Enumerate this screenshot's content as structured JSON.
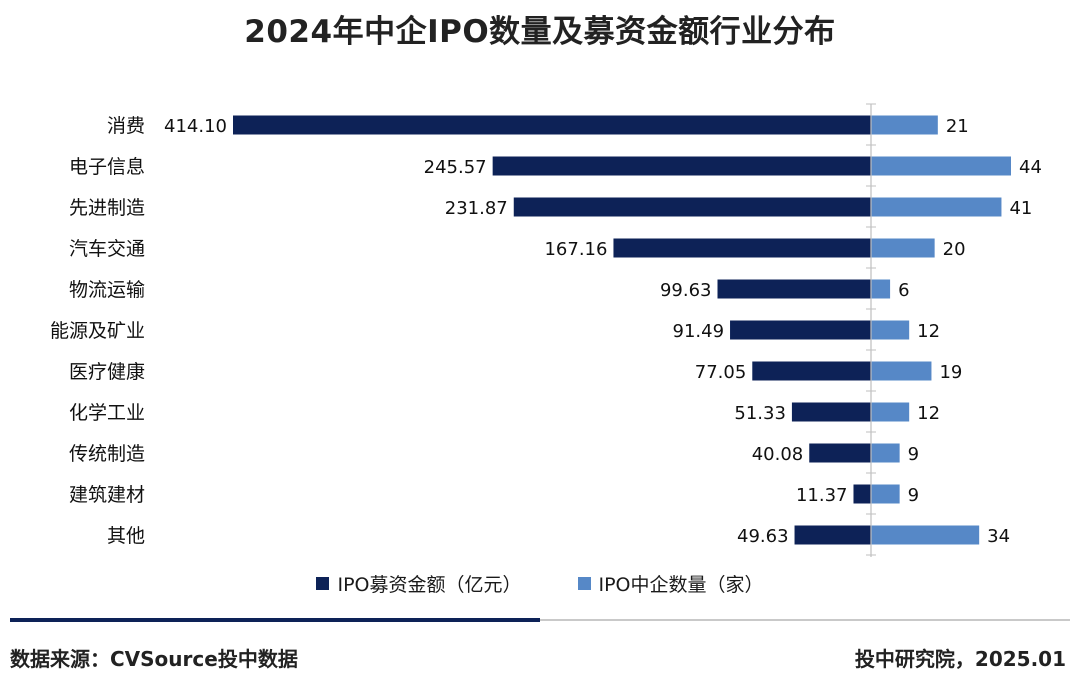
{
  "colors": {
    "amount": "#0d2257",
    "count": "#5688c7",
    "rule": "#0d2257"
  },
  "chart_data": {
    "type": "bar",
    "title": "2024年中企IPO数量及募资金额行业分布",
    "categories": [
      "消费",
      "电子信息",
      "先进制造",
      "汽车交通",
      "物流运输",
      "能源及矿业",
      "医疗健康",
      "化学工业",
      "传统制造",
      "建筑建材",
      "其他"
    ],
    "series": [
      {
        "name": "IPO募资金额（亿元）",
        "values": [
          414.1,
          245.57,
          231.87,
          167.16,
          99.63,
          91.49,
          77.05,
          51.33,
          40.08,
          11.37,
          49.63
        ]
      },
      {
        "name": "IPO中企数量（家）",
        "values": [
          21,
          44,
          41,
          20,
          6,
          12,
          19,
          12,
          9,
          9,
          34
        ]
      }
    ],
    "value_labels_amount": [
      "414.10",
      "245.57",
      "231.87",
      "167.16",
      "99.63",
      "91.49",
      "77.05",
      "51.33",
      "40.08",
      "11.37",
      "49.63"
    ],
    "value_labels_count": [
      "21",
      "44",
      "41",
      "20",
      "6",
      "12",
      "19",
      "12",
      "9",
      "9",
      "34"
    ],
    "layout": "diverging horizontal bars",
    "legend_position": "bottom-center",
    "grid": false
  },
  "legend": {
    "amount_label": "IPO募资金额（亿元）",
    "count_label": "IPO中企数量（家）"
  },
  "footer": {
    "source": "数据来源：CVSource投中数据",
    "credit": "投中研究院，2025.01"
  }
}
